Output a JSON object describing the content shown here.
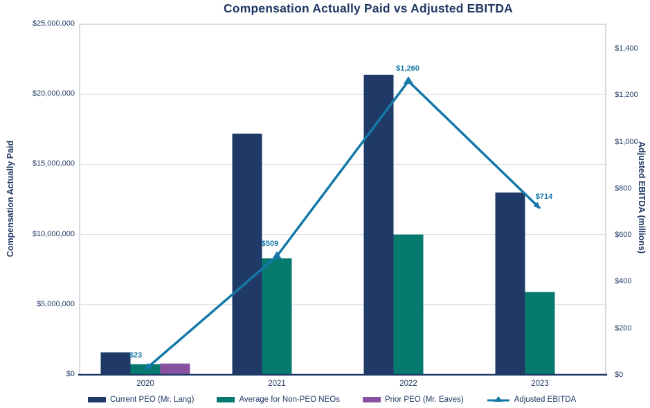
{
  "title": "Compensation Actually Paid vs Adjusted EBITDA",
  "colors": {
    "navy_bar": "#1F3A66",
    "teal_bar": "#067A6E",
    "purple_bar": "#8952A1",
    "line_blue": "#1578A8",
    "text_navy": "#1F3864",
    "gridline": "#DADDE4",
    "plot_border": "#C3C6D3",
    "axis_line": "#1F3864"
  },
  "chart_data": {
    "type": "bar",
    "subtype": "grouped bars with secondary-axis line overlay",
    "title": "Compensation Actually Paid vs Adjusted EBITDA",
    "categories": [
      "2020",
      "2021",
      "2022",
      "2023"
    ],
    "series": [
      {
        "name": "Current PEO (Mr. Lang)",
        "type": "bar",
        "axis": "left",
        "color": "#1F3A66",
        "values": [
          1600000,
          17200000,
          21400000,
          13000000
        ]
      },
      {
        "name": "Average for Non-PEO NEOs",
        "type": "bar",
        "axis": "left",
        "color": "#067A6E",
        "values": [
          750000,
          8300000,
          10000000,
          5900000
        ]
      },
      {
        "name": "Prior PEO (Mr. Eaves)",
        "type": "bar",
        "axis": "left",
        "color": "#8952A1",
        "values": [
          800000,
          null,
          null,
          null
        ]
      },
      {
        "name": "Adjusted EBITDA",
        "type": "line",
        "axis": "right",
        "color": "#1578A8",
        "values": [
          23,
          509,
          1260,
          714
        ],
        "point_labels": [
          "$23",
          "$509",
          "$1,260",
          "$714"
        ]
      }
    ],
    "left_axis": {
      "title": "Compensation Actually Paid",
      "min": 0,
      "max": 25000000,
      "step": 5000000,
      "tick_labels": [
        "$0",
        "$5,000,000",
        "$10,000,000",
        "$15,000,000",
        "$20,000,000",
        "$25,000,000"
      ]
    },
    "right_axis": {
      "title": "Adjusted EBITDA (millions)",
      "min": 0,
      "max": 1400,
      "step": 200,
      "tick_labels": [
        "$0",
        "$200",
        "$400",
        "$600",
        "$800",
        "$1,000",
        "$1,200",
        "$1,400"
      ]
    },
    "grid": "horizontal gridlines at left-axis ticks",
    "legend_position": "bottom"
  },
  "legend": {
    "items": [
      {
        "label": "Current PEO (Mr. Lang)",
        "swatch": "navy-bar-swatch"
      },
      {
        "label": "Average for Non-PEO NEOs",
        "swatch": "teal-bar-swatch"
      },
      {
        "label": "Prior PEO (Mr. Eaves)",
        "swatch": "purple-bar-swatch"
      },
      {
        "label": "Adjusted EBITDA",
        "swatch": "line-triangle-swatch"
      }
    ]
  }
}
